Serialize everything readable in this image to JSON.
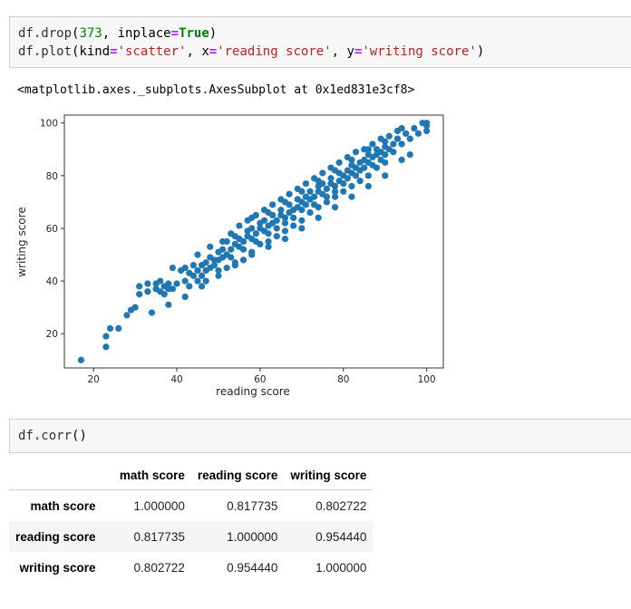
{
  "cells": {
    "cell1": {
      "line1": {
        "obj": "df",
        "dot": ".",
        "method": "drop",
        "open": "(",
        "num": "373",
        "sep": ", ",
        "kwname": "inplace",
        "eq": "=",
        "kwval": "True",
        "close": ")"
      },
      "line2": {
        "obj": "df",
        "dot": ".",
        "method": "plot",
        "open": "(",
        "k1": "kind",
        "eq": "=",
        "v1": "'scatter'",
        "sep1": ", ",
        "k2": "x",
        "v2": "'reading score'",
        "sep2": ", ",
        "k3": "y",
        "v3": "'writing score'",
        "close": ")"
      },
      "output": "<matplotlib.axes._subplots.AxesSubplot at 0x1ed831e3cf8>"
    },
    "cell2": {
      "obj": "df",
      "dot": ".",
      "method": "corr",
      "parens": "()"
    }
  },
  "chart_data": {
    "type": "scatter",
    "xlabel": "reading score",
    "ylabel": "writing score",
    "xlim": [
      13,
      104
    ],
    "ylim": [
      7,
      103
    ],
    "xticks": [
      20,
      40,
      60,
      80,
      100
    ],
    "yticks": [
      20,
      40,
      60,
      80,
      100
    ],
    "marker_color": "#1f77b4",
    "grid": false,
    "points": [
      [
        17,
        10
      ],
      [
        23,
        19
      ],
      [
        23,
        15
      ],
      [
        24,
        22
      ],
      [
        26,
        22
      ],
      [
        28,
        27
      ],
      [
        29,
        29
      ],
      [
        30,
        30
      ],
      [
        31,
        38
      ],
      [
        31,
        35
      ],
      [
        33,
        36
      ],
      [
        33,
        39
      ],
      [
        34,
        28
      ],
      [
        35,
        37
      ],
      [
        35,
        39
      ],
      [
        36,
        36
      ],
      [
        37,
        38
      ],
      [
        37,
        35
      ],
      [
        38,
        39
      ],
      [
        38,
        31
      ],
      [
        38,
        37
      ],
      [
        39,
        37
      ],
      [
        40,
        39
      ],
      [
        41,
        44
      ],
      [
        42,
        40
      ],
      [
        42,
        45
      ],
      [
        43,
        43
      ],
      [
        43,
        38
      ],
      [
        44,
        42
      ],
      [
        44,
        46
      ],
      [
        45,
        44
      ],
      [
        45,
        40
      ],
      [
        46,
        46
      ],
      [
        46,
        42
      ],
      [
        47,
        47
      ],
      [
        47,
        44
      ],
      [
        48,
        45
      ],
      [
        48,
        49
      ],
      [
        49,
        48
      ],
      [
        49,
        46
      ],
      [
        50,
        48
      ],
      [
        50,
        51
      ],
      [
        51,
        49
      ],
      [
        51,
        52
      ],
      [
        52,
        50
      ],
      [
        52,
        55
      ],
      [
        53,
        52
      ],
      [
        53,
        49
      ],
      [
        54,
        54
      ],
      [
        54,
        57
      ],
      [
        55,
        53
      ],
      [
        55,
        56
      ],
      [
        56,
        55
      ],
      [
        56,
        52
      ],
      [
        57,
        57
      ],
      [
        57,
        59
      ],
      [
        58,
        56
      ],
      [
        58,
        60
      ],
      [
        59,
        58
      ],
      [
        59,
        55
      ],
      [
        60,
        60
      ],
      [
        60,
        62
      ],
      [
        61,
        59
      ],
      [
        61,
        63
      ],
      [
        62,
        61
      ],
      [
        62,
        58
      ],
      [
        63,
        62
      ],
      [
        63,
        65
      ],
      [
        64,
        63
      ],
      [
        64,
        60
      ],
      [
        65,
        65
      ],
      [
        65,
        67
      ],
      [
        66,
        64
      ],
      [
        66,
        62
      ],
      [
        67,
        66
      ],
      [
        67,
        69
      ],
      [
        68,
        67
      ],
      [
        68,
        64
      ],
      [
        69,
        68
      ],
      [
        69,
        71
      ],
      [
        70,
        70
      ],
      [
        70,
        67
      ],
      [
        71,
        72
      ],
      [
        71,
        69
      ],
      [
        72,
        71
      ],
      [
        72,
        74
      ],
      [
        73,
        72
      ],
      [
        73,
        69
      ],
      [
        74,
        74
      ],
      [
        74,
        76
      ],
      [
        75,
        73
      ],
      [
        75,
        77
      ],
      [
        76,
        75
      ],
      [
        76,
        72
      ],
      [
        77,
        77
      ],
      [
        77,
        79
      ],
      [
        78,
        76
      ],
      [
        78,
        74
      ],
      [
        79,
        78
      ],
      [
        79,
        81
      ],
      [
        80,
        80
      ],
      [
        80,
        77
      ],
      [
        81,
        79
      ],
      [
        81,
        82
      ],
      [
        82,
        81
      ],
      [
        82,
        84
      ],
      [
        83,
        83
      ],
      [
        83,
        80
      ],
      [
        84,
        85
      ],
      [
        84,
        82
      ],
      [
        85,
        86
      ],
      [
        85,
        83
      ],
      [
        86,
        85
      ],
      [
        86,
        88
      ],
      [
        87,
        87
      ],
      [
        87,
        84
      ],
      [
        88,
        88
      ],
      [
        88,
        90
      ],
      [
        89,
        89
      ],
      [
        89,
        86
      ],
      [
        90,
        91
      ],
      [
        90,
        88
      ],
      [
        91,
        90
      ],
      [
        92,
        92
      ],
      [
        92,
        89
      ],
      [
        93,
        94
      ],
      [
        94,
        92
      ],
      [
        95,
        96
      ],
      [
        96,
        94
      ],
      [
        97,
        98
      ],
      [
        98,
        96
      ],
      [
        99,
        100
      ],
      [
        100,
        99
      ],
      [
        100,
        97
      ],
      [
        100,
        100
      ],
      [
        47,
        40
      ],
      [
        50,
        44
      ],
      [
        52,
        45
      ],
      [
        54,
        47
      ],
      [
        56,
        48
      ],
      [
        58,
        51
      ],
      [
        60,
        54
      ],
      [
        62,
        55
      ],
      [
        64,
        57
      ],
      [
        66,
        59
      ],
      [
        68,
        61
      ],
      [
        70,
        63
      ],
      [
        72,
        66
      ],
      [
        74,
        68
      ],
      [
        76,
        70
      ],
      [
        78,
        72
      ],
      [
        80,
        74
      ],
      [
        82,
        76
      ],
      [
        84,
        78
      ],
      [
        86,
        80
      ],
      [
        88,
        83
      ],
      [
        90,
        85
      ],
      [
        55,
        61
      ],
      [
        57,
        63
      ],
      [
        59,
        65
      ],
      [
        61,
        67
      ],
      [
        63,
        69
      ],
      [
        65,
        71
      ],
      [
        67,
        73
      ],
      [
        69,
        75
      ],
      [
        71,
        77
      ],
      [
        73,
        79
      ],
      [
        75,
        81
      ],
      [
        77,
        83
      ],
      [
        79,
        85
      ],
      [
        81,
        87
      ],
      [
        83,
        89
      ],
      [
        85,
        90
      ],
      [
        87,
        92
      ],
      [
        89,
        94
      ],
      [
        91,
        95
      ],
      [
        93,
        97
      ],
      [
        45,
        50
      ],
      [
        48,
        53
      ],
      [
        51,
        55
      ],
      [
        39,
        45
      ],
      [
        36,
        40
      ],
      [
        53,
        58
      ],
      [
        58,
        64
      ],
      [
        62,
        66
      ],
      [
        66,
        70
      ],
      [
        70,
        74
      ],
      [
        74,
        78
      ],
      [
        78,
        82
      ],
      [
        82,
        86
      ],
      [
        86,
        90
      ],
      [
        90,
        93
      ],
      [
        94,
        98
      ],
      [
        42,
        34
      ],
      [
        46,
        38
      ],
      [
        50,
        42
      ],
      [
        54,
        46
      ],
      [
        58,
        50
      ],
      [
        62,
        53
      ],
      [
        66,
        56
      ],
      [
        70,
        60
      ],
      [
        74,
        64
      ],
      [
        78,
        68
      ],
      [
        82,
        72
      ],
      [
        86,
        76
      ],
      [
        90,
        80
      ],
      [
        94,
        86
      ],
      [
        96,
        88
      ]
    ]
  },
  "corr_table": {
    "columns": [
      "math score",
      "reading score",
      "writing score"
    ],
    "rows": [
      {
        "label": "math score",
        "values": [
          "1.000000",
          "0.817735",
          "0.802722"
        ]
      },
      {
        "label": "reading score",
        "values": [
          "0.817735",
          "1.000000",
          "0.954440"
        ]
      },
      {
        "label": "writing score",
        "values": [
          "0.802722",
          "0.954440",
          "1.000000"
        ]
      }
    ]
  }
}
